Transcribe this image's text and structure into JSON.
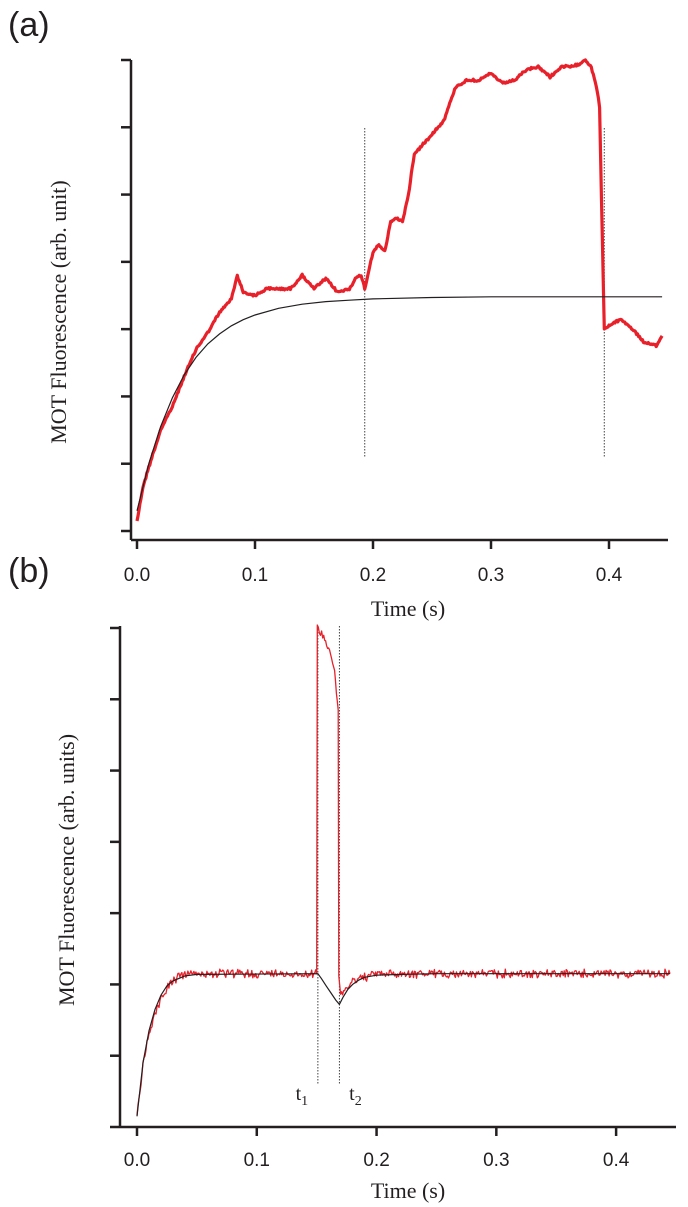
{
  "chart_data": [
    {
      "panel_label": "(a)",
      "type": "line",
      "xlabel": "Time (s)",
      "ylabel": "MOT Fluorescence (arb. unit)",
      "xlim": [
        0,
        0.45
      ],
      "ylim": [
        0,
        7
      ],
      "x_ticks": [
        "0.0",
        "0.1",
        "0.2",
        "0.3",
        "0.4"
      ],
      "y_ticks_labeled": false,
      "marker_lines_x": [
        0.193,
        0.396
      ],
      "series": [
        {
          "color": "#e8202a",
          "style": "noisy data",
          "x": [
            0,
            0.005,
            0.01,
            0.02,
            0.03,
            0.04,
            0.05,
            0.06,
            0.07,
            0.08,
            0.085,
            0.09,
            0.1,
            0.11,
            0.12,
            0.13,
            0.14,
            0.15,
            0.16,
            0.17,
            0.18,
            0.185,
            0.19,
            0.193,
            0.2,
            0.205,
            0.21,
            0.215,
            0.22,
            0.225,
            0.23,
            0.235,
            0.24,
            0.25,
            0.26,
            0.27,
            0.28,
            0.29,
            0.3,
            0.31,
            0.32,
            0.33,
            0.34,
            0.35,
            0.36,
            0.37,
            0.38,
            0.385,
            0.39,
            0.392,
            0.396,
            0.4,
            0.41,
            0.42,
            0.43,
            0.44,
            0.445
          ],
          "y": [
            0.15,
            0.65,
            0.95,
            1.5,
            1.85,
            2.3,
            2.7,
            2.95,
            3.25,
            3.45,
            3.8,
            3.55,
            3.5,
            3.6,
            3.6,
            3.6,
            3.8,
            3.6,
            3.75,
            3.55,
            3.6,
            3.75,
            3.8,
            3.6,
            4.15,
            4.25,
            4.15,
            4.6,
            4.65,
            4.6,
            5.0,
            5.6,
            5.7,
            5.9,
            6.1,
            6.6,
            6.7,
            6.7,
            6.8,
            6.65,
            6.7,
            6.85,
            6.9,
            6.75,
            6.9,
            6.9,
            7.0,
            6.9,
            6.55,
            6.3,
            3.0,
            3.05,
            3.15,
            3.0,
            2.8,
            2.75,
            2.9
          ]
        },
        {
          "color": "#231f20",
          "style": "exponential fit",
          "x": [
            0,
            0.01,
            0.02,
            0.03,
            0.04,
            0.05,
            0.06,
            0.07,
            0.08,
            0.09,
            0.1,
            0.12,
            0.14,
            0.16,
            0.18,
            0.2,
            0.25,
            0.3,
            0.35,
            0.4,
            0.445
          ],
          "y": [
            0.3,
            1.0,
            1.55,
            1.98,
            2.32,
            2.58,
            2.78,
            2.93,
            3.05,
            3.14,
            3.21,
            3.31,
            3.37,
            3.41,
            3.43,
            3.45,
            3.47,
            3.48,
            3.48,
            3.48,
            3.48
          ]
        }
      ]
    },
    {
      "panel_label": "(b)",
      "type": "line",
      "xlabel": "Time (s)",
      "ylabel": "MOT Fluorescence (arb. units)",
      "xlim": [
        0,
        0.45
      ],
      "ylim": [
        0,
        7
      ],
      "x_ticks": [
        "0.0",
        "0.1",
        "0.2",
        "0.3",
        "0.4"
      ],
      "y_ticks_labeled": false,
      "marker_lines_x": [
        0.151,
        0.169
      ],
      "markers": [
        {
          "base": "t",
          "sub": "1",
          "x": 0.151
        },
        {
          "base": "t",
          "sub": "2",
          "x": 0.169
        }
      ],
      "series": [
        {
          "color": "#e8202a",
          "style": "noisy data",
          "x": [
            0,
            0.005,
            0.01,
            0.015,
            0.02,
            0.025,
            0.03,
            0.04,
            0.05,
            0.1,
            0.15,
            0.1505,
            0.155,
            0.16,
            0.165,
            0.168,
            0.1685,
            0.17,
            0.175,
            0.18,
            0.19,
            0.2,
            0.25,
            0.3,
            0.35,
            0.4,
            0.445
          ],
          "y": [
            0.15,
            0.9,
            1.3,
            1.6,
            1.8,
            1.95,
            2.05,
            2.15,
            2.15,
            2.15,
            2.15,
            7.0,
            6.9,
            6.75,
            6.4,
            5.85,
            2.05,
            1.85,
            1.95,
            2.05,
            2.1,
            2.15,
            2.15,
            2.15,
            2.15,
            2.15,
            2.15
          ]
        },
        {
          "color": "#231f20",
          "style": "exponential fit",
          "x": [
            0,
            0.005,
            0.01,
            0.015,
            0.02,
            0.025,
            0.03,
            0.04,
            0.05,
            0.151,
            0.154,
            0.158,
            0.162,
            0.166,
            0.169,
            0.172,
            0.176,
            0.18,
            0.185,
            0.19,
            0.2,
            0.22,
            0.25,
            0.3,
            0.35,
            0.4,
            0.445
          ],
          "y": [
            0.15,
            0.9,
            1.35,
            1.65,
            1.85,
            1.98,
            2.05,
            2.12,
            2.14,
            2.15,
            2.08,
            1.98,
            1.88,
            1.78,
            1.72,
            1.82,
            1.93,
            2.0,
            2.06,
            2.1,
            2.13,
            2.14,
            2.15,
            2.15,
            2.15,
            2.15,
            2.15
          ]
        }
      ]
    }
  ]
}
